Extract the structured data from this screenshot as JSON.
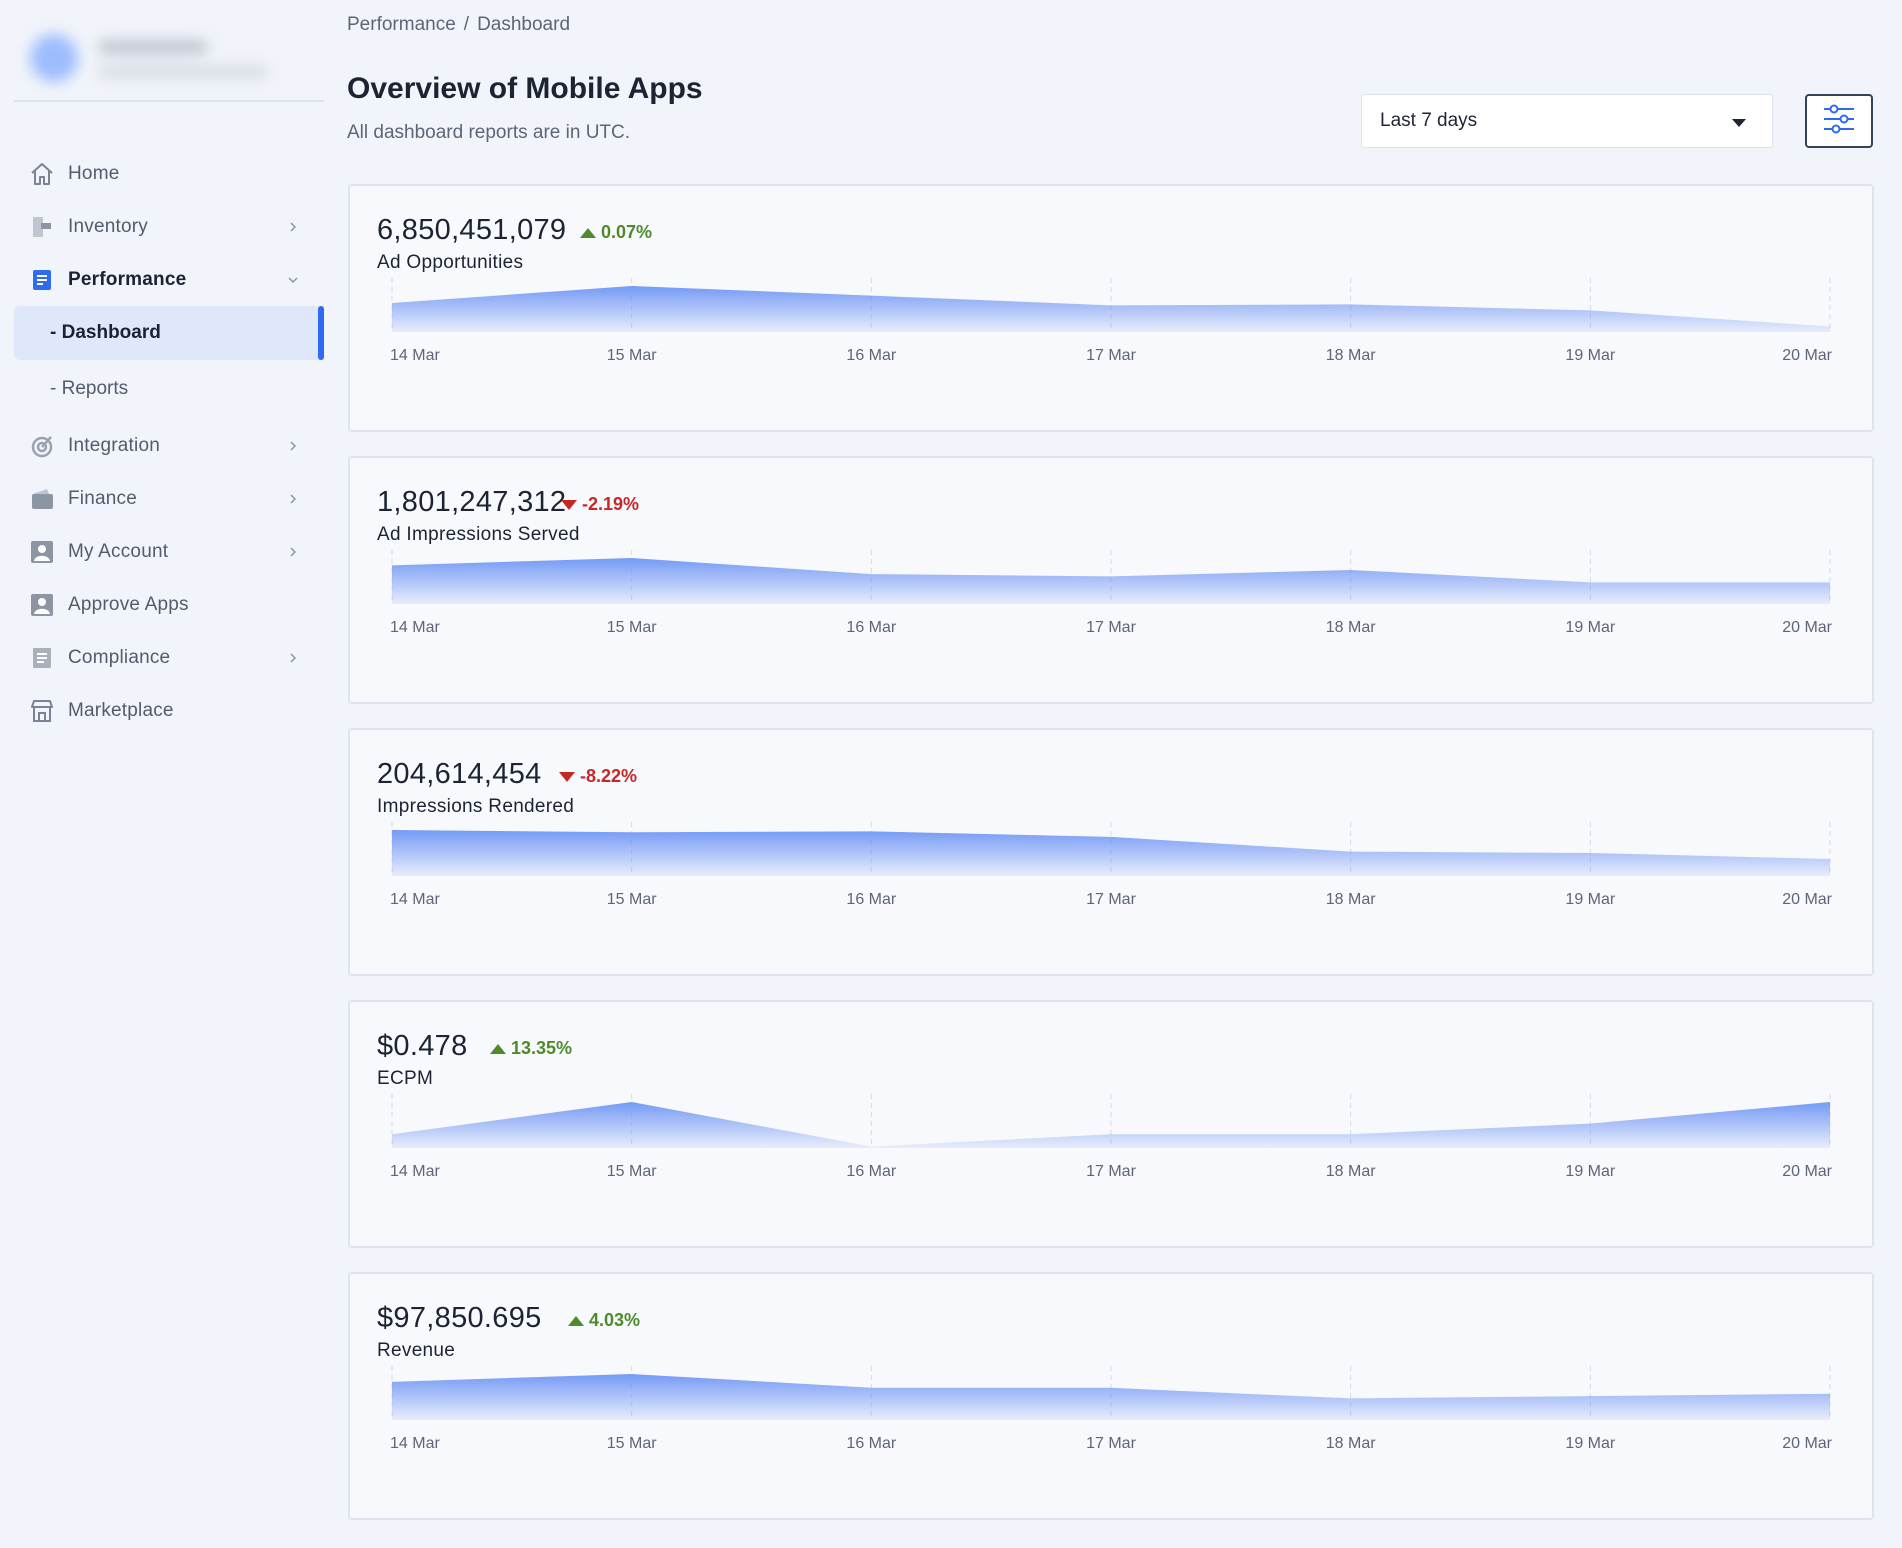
{
  "breadcrumb": {
    "parent": "Performance",
    "separator": "/",
    "current": "Dashboard"
  },
  "header": {
    "title": "Overview of Mobile Apps",
    "subtitle": "All dashboard reports are in UTC.",
    "date_range": "Last 7 days"
  },
  "sidebar": {
    "items": [
      {
        "label": "Home",
        "icon": "home-icon"
      },
      {
        "label": "Inventory",
        "icon": "inventory-icon"
      },
      {
        "label": "Performance",
        "icon": "performance-icon"
      },
      {
        "label": "Integration",
        "icon": "integration-icon"
      },
      {
        "label": "Finance",
        "icon": "wallet-icon"
      },
      {
        "label": "My Account",
        "icon": "user-icon"
      },
      {
        "label": "Approve Apps",
        "icon": "user-check-icon"
      },
      {
        "label": "Compliance",
        "icon": "document-icon"
      },
      {
        "label": "Marketplace",
        "icon": "store-icon"
      }
    ],
    "sub_items": [
      {
        "label": "- Dashboard"
      },
      {
        "label": "- Reports"
      }
    ]
  },
  "colors": {
    "accent": "#2e6bf0",
    "positive": "#4f8a2b",
    "negative": "#c62828",
    "area": "#6e95f5"
  },
  "chart_data": [
    {
      "type": "area",
      "value": "6,850,451,079",
      "delta": "0.07%",
      "direction": "up",
      "title": "Ad Opportunities",
      "x": [
        "14 Mar",
        "15 Mar",
        "16 Mar",
        "17 Mar",
        "18 Mar",
        "19 Mar",
        "20 Mar"
      ],
      "values": [
        0.63,
        1.0,
        0.79,
        0.58,
        0.6,
        0.47,
        0.12
      ]
    },
    {
      "type": "area",
      "value": "1,801,247,312",
      "delta": "-2.19%",
      "direction": "down",
      "title": "Ad Impressions Served",
      "x": [
        "14 Mar",
        "15 Mar",
        "16 Mar",
        "17 Mar",
        "18 Mar",
        "19 Mar",
        "20 Mar"
      ],
      "values": [
        0.84,
        1.0,
        0.65,
        0.6,
        0.74,
        0.47,
        0.47
      ]
    },
    {
      "type": "area",
      "value": "204,614,454",
      "delta": "-8.22%",
      "direction": "down",
      "title": "Impressions Rendered",
      "x": [
        "14 Mar",
        "15 Mar",
        "16 Mar",
        "17 Mar",
        "18 Mar",
        "19 Mar",
        "20 Mar"
      ],
      "values": [
        1.0,
        0.95,
        0.97,
        0.85,
        0.53,
        0.5,
        0.37
      ]
    },
    {
      "type": "area",
      "value": "$0.478",
      "delta": "13.35%",
      "direction": "up",
      "title": "ECPM",
      "x": [
        "14 Mar",
        "15 Mar",
        "16 Mar",
        "17 Mar",
        "18 Mar",
        "19 Mar",
        "20 Mar"
      ],
      "values": [
        0.3,
        1.0,
        0.03,
        0.3,
        0.3,
        0.53,
        1.0
      ]
    },
    {
      "type": "area",
      "value": "$97,850.695",
      "delta": "4.03%",
      "direction": "up",
      "title": "Revenue",
      "x": [
        "14 Mar",
        "15 Mar",
        "16 Mar",
        "17 Mar",
        "18 Mar",
        "19 Mar",
        "20 Mar"
      ],
      "values": [
        0.83,
        1.0,
        0.7,
        0.7,
        0.47,
        0.52,
        0.57
      ]
    }
  ]
}
